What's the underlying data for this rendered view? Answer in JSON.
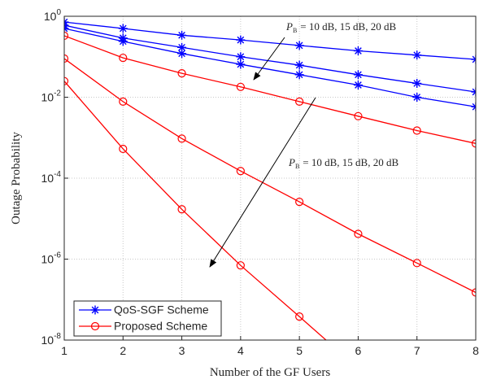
{
  "chart_data": {
    "type": "line",
    "xlabel": "Number of the GF Users",
    "ylabel": "Outage Probability",
    "x": [
      1,
      2,
      3,
      4,
      5,
      6,
      7,
      8
    ],
    "xlim": [
      1,
      8
    ],
    "xticks": [
      1,
      2,
      3,
      4,
      5,
      6,
      7,
      8
    ],
    "ylim": [
      1e-08,
      1
    ],
    "log_y": true,
    "grid": true,
    "yticks": [
      {
        "value": 1,
        "label": "10",
        "exponent": "0"
      },
      {
        "value": 0.01,
        "label": "10",
        "exponent": "-2"
      },
      {
        "value": 0.0001,
        "label": "10",
        "exponent": "-4"
      },
      {
        "value": 1e-06,
        "label": "10",
        "exponent": "-6"
      },
      {
        "value": 1e-08,
        "label": "10",
        "exponent": "-8"
      }
    ],
    "legend_position": "lower left",
    "series": [
      {
        "name": "QoS-SGF Scheme",
        "color": "#0000ff",
        "marker": "asterisk",
        "values": [
          [
            0.72,
            0.5,
            0.34,
            0.26,
            0.19,
            0.14,
            0.11,
            0.086
          ],
          [
            0.6,
            0.29,
            0.17,
            0.1,
            0.062,
            0.036,
            0.022,
            0.0135
          ],
          [
            0.5,
            0.24,
            0.12,
            0.065,
            0.036,
            0.02,
            0.01,
            0.0058
          ]
        ]
      },
      {
        "name": "Proposed Scheme",
        "color": "#ff0000",
        "marker": "circle",
        "values": [
          [
            0.33,
            0.094,
            0.039,
            0.018,
            0.0078,
            0.0034,
            0.0015,
            0.00072
          ],
          [
            0.09,
            0.0078,
            0.00095,
            0.00015,
            2.6e-05,
            4.2e-06,
            8e-07,
            1.5e-07
          ],
          [
            0.025,
            0.00053,
            1.7e-05,
            7e-07,
            3.8e-08,
            2e-09,
            null,
            null
          ]
        ]
      }
    ],
    "annotations": [
      {
        "symbol": "P",
        "subscript": "B",
        "text": "= 10 dB, 15 dB, 20 dB"
      },
      {
        "symbol": "P",
        "subscript": "B",
        "text": "= 10 dB, 15 dB, 20 dB"
      }
    ]
  }
}
